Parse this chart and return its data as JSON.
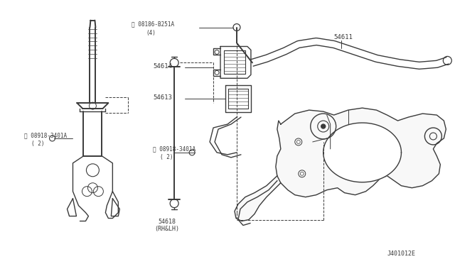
{
  "background_color": "#ffffff",
  "line_color": "#3a3a3a",
  "fig_width": 6.4,
  "fig_height": 3.72,
  "dpi": 100,
  "labels": {
    "bolt_top_part": "08186-B251A",
    "bolt_top_qty": "(4)",
    "part_54614": "54614",
    "part_54613": "54613",
    "part_54611": "54611",
    "bolt_mid_part": "08918-3401A",
    "bolt_mid_qty": "(2)",
    "bolt_left_part": "08918-3401A",
    "bolt_left_qty": "(2)",
    "part_54618": "54618",
    "part_54618_sub": "(RH&LH)",
    "part_code": "J401012E"
  }
}
